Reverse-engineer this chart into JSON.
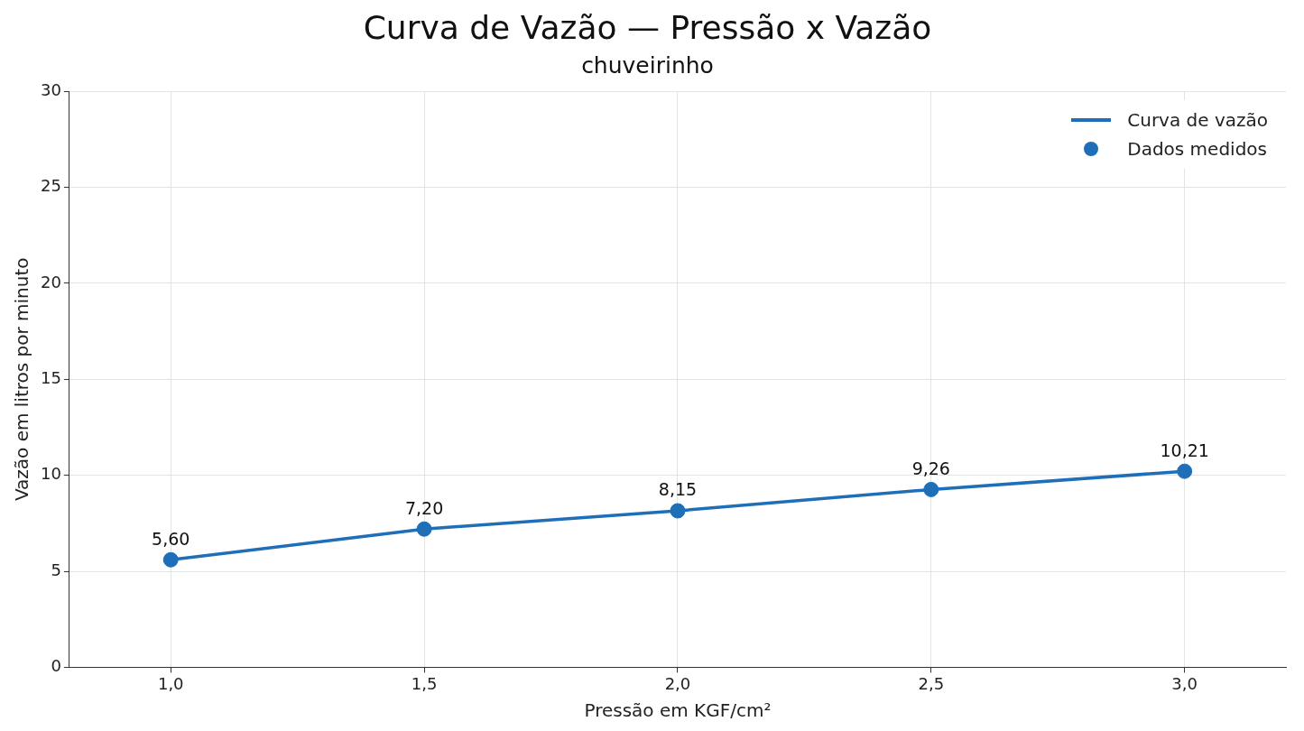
{
  "chart_data": {
    "type": "line",
    "title": "Curva de Vazão — Pressão x Vazão",
    "subtitle": "chuveirinho",
    "xlabel": "Pressão em KGF/cm²",
    "ylabel": "Vazão em litros por minuto",
    "x": [
      1.0,
      1.5,
      2.0,
      2.5,
      3.0
    ],
    "series": [
      {
        "name": "Curva de vazão",
        "color": "#1f6fb8",
        "values": [
          5.6,
          7.2,
          8.15,
          9.26,
          10.21
        ],
        "marker": "none"
      },
      {
        "name": "Dados medidos",
        "type": "scatter",
        "color": "#1f6fb8",
        "values": [
          5.6,
          7.2,
          8.15,
          9.26,
          10.21
        ],
        "marker": "circle",
        "value_labels": [
          "5,60",
          "7,20",
          "8,15",
          "9,26",
          "10,21"
        ]
      }
    ],
    "xlim": [
      0.8,
      3.2
    ],
    "xticks": [
      {
        "value": 1.0,
        "label": "1,0"
      },
      {
        "value": 1.5,
        "label": "1,5"
      },
      {
        "value": 2.0,
        "label": "2,0"
      },
      {
        "value": 2.5,
        "label": "2,5"
      },
      {
        "value": 3.0,
        "label": "3,0"
      }
    ],
    "ylim": [
      0,
      30
    ],
    "yticks": [
      0,
      5,
      10,
      15,
      20,
      25,
      30
    ],
    "grid": true,
    "legend": "top right",
    "line_style": "solid"
  }
}
